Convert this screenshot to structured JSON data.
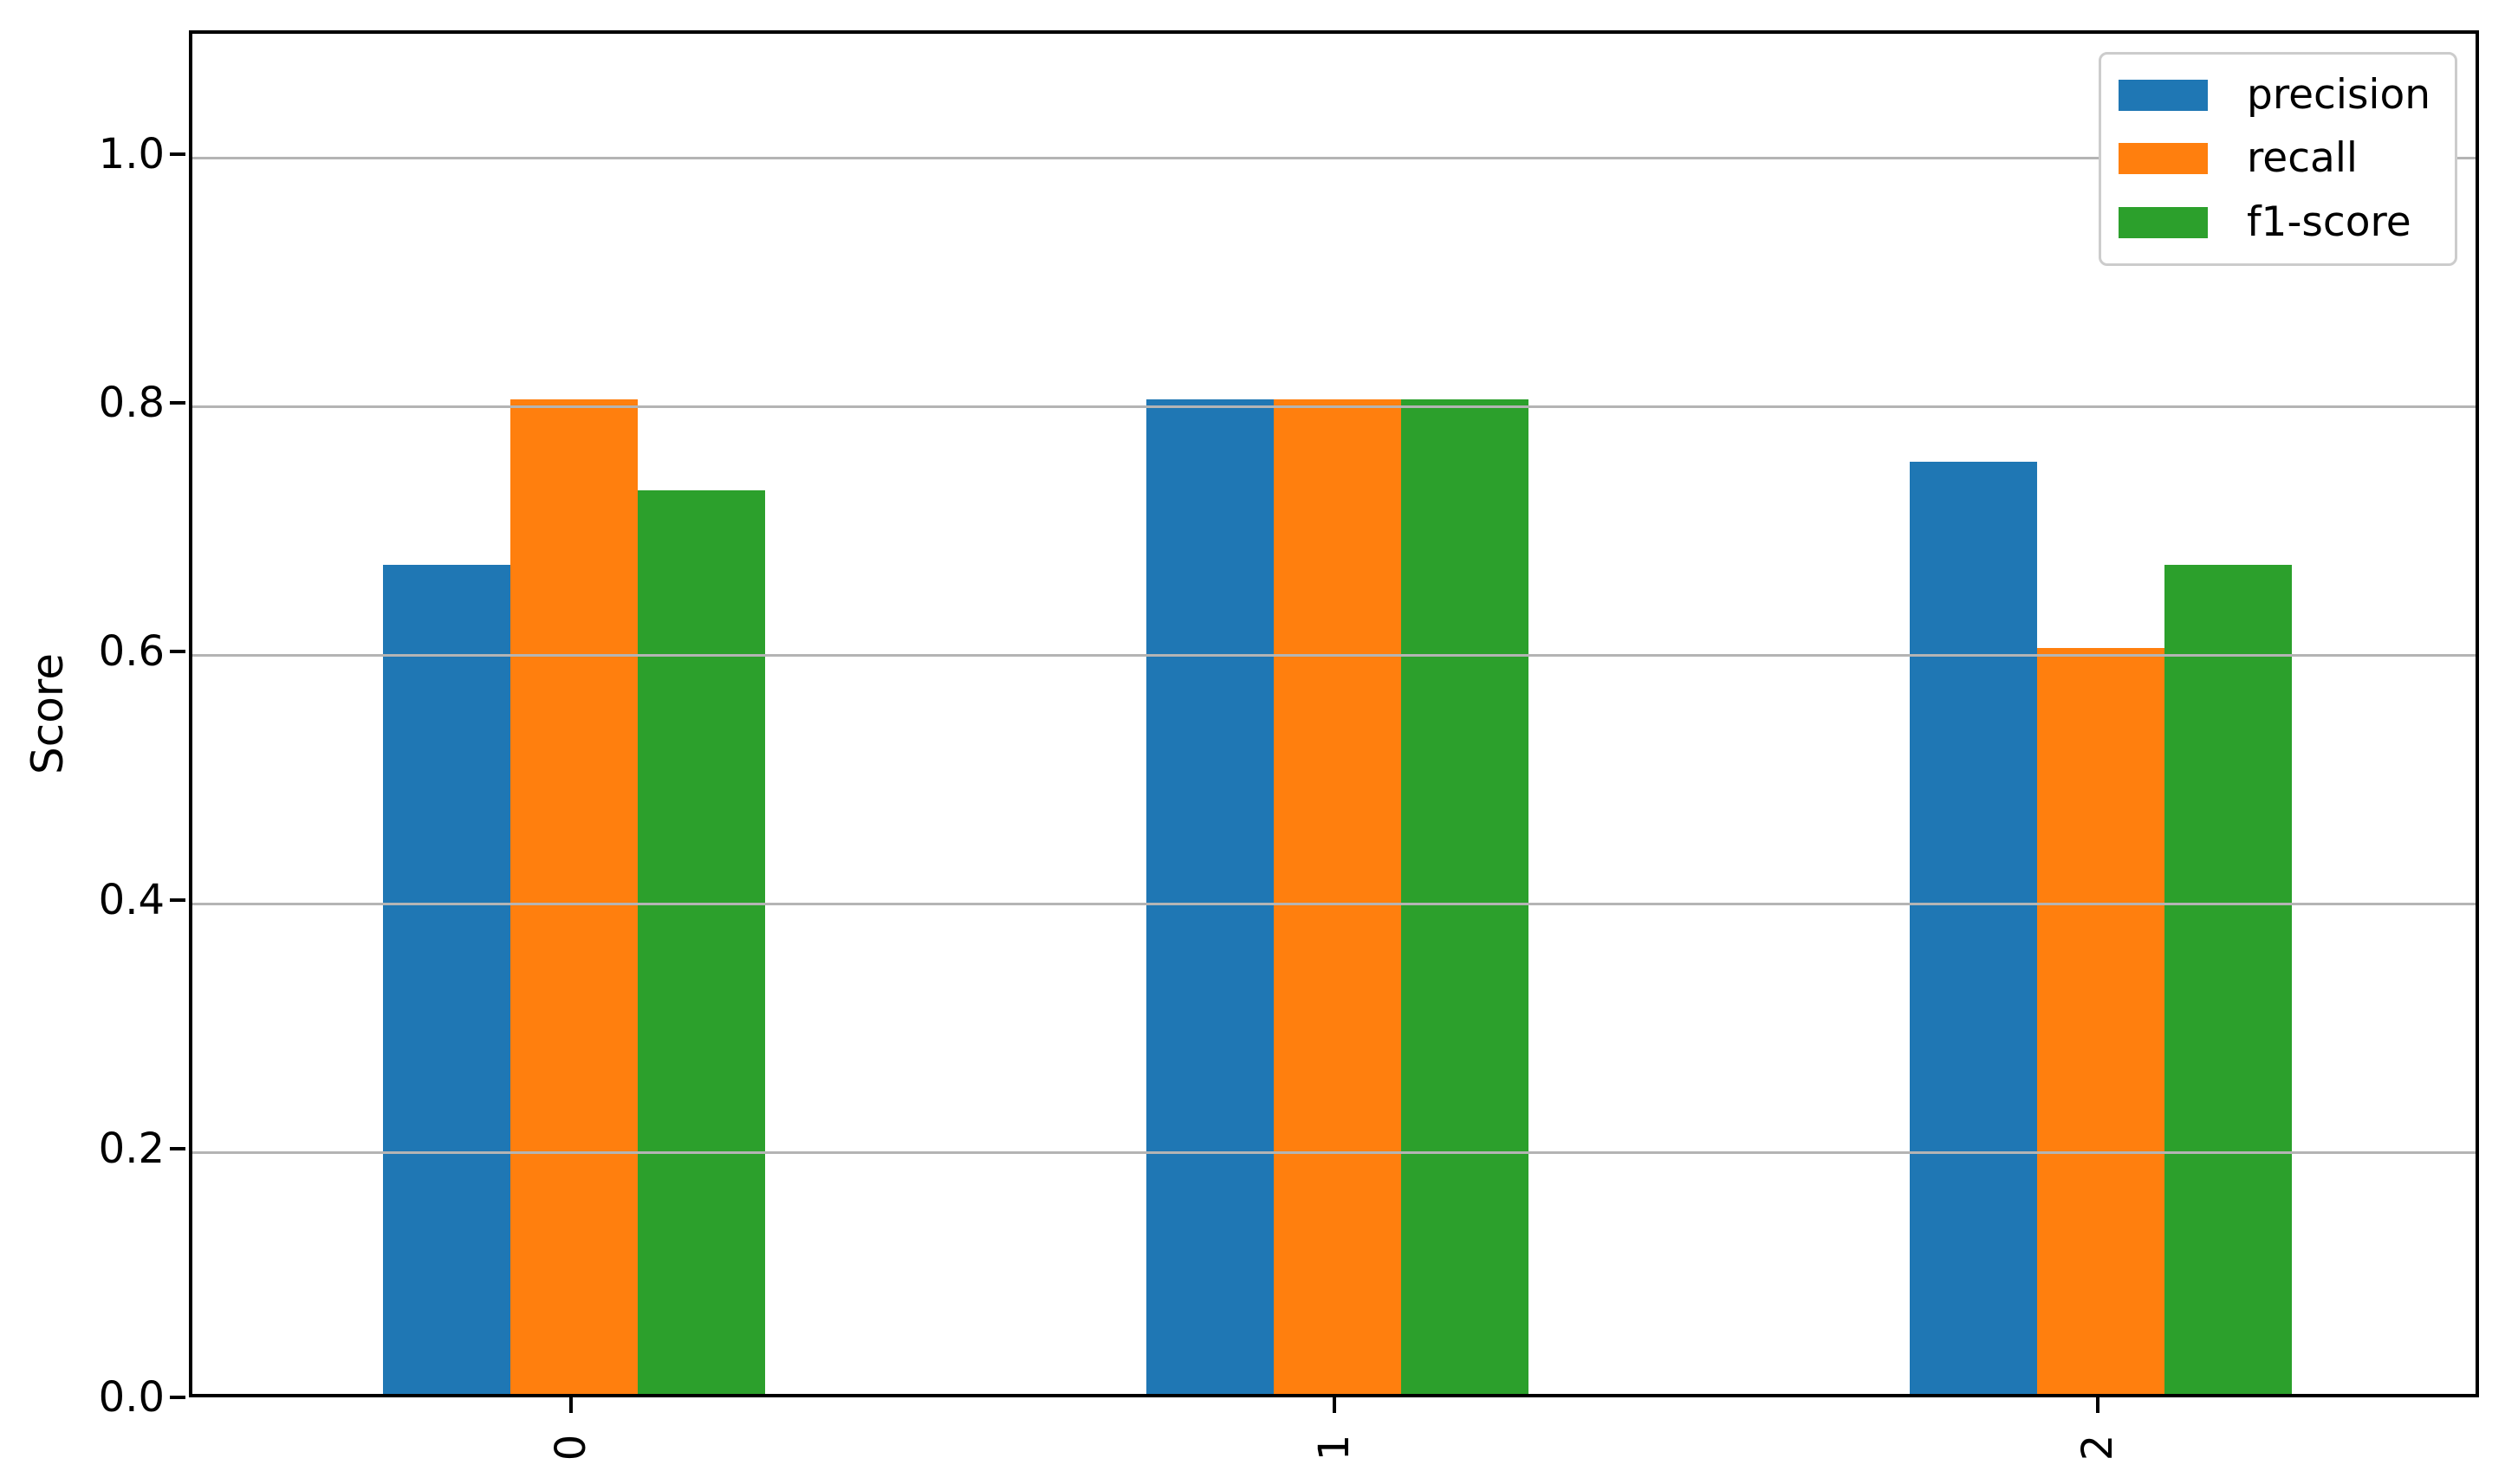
{
  "chart_data": {
    "type": "bar",
    "categories": [
      "0",
      "1",
      "2"
    ],
    "series": [
      {
        "name": "precision",
        "color": "#1f77b4",
        "values": [
          0.667,
          0.8,
          0.75
        ]
      },
      {
        "name": "recall",
        "color": "#ff7f0e",
        "values": [
          0.8,
          0.8,
          0.6
        ]
      },
      {
        "name": "f1-score",
        "color": "#2ca02c",
        "values": [
          0.727,
          0.8,
          0.667
        ]
      }
    ],
    "title": "",
    "xlabel": "",
    "ylabel": "Score",
    "ylim": [
      0,
      1.1
    ],
    "yticks": [
      "0.0",
      "0.2",
      "0.4",
      "0.6",
      "0.8",
      "1.0"
    ],
    "xtick_rotation": 90,
    "group_width_fraction": 0.5,
    "grid": "horizontal, drawn over bars",
    "legend_position": "upper right",
    "colors": {
      "spine": "#000000",
      "gridline": "#b4b4b4",
      "legend_border": "#cccccc",
      "background": "#ffffff",
      "text": "#000000"
    }
  }
}
